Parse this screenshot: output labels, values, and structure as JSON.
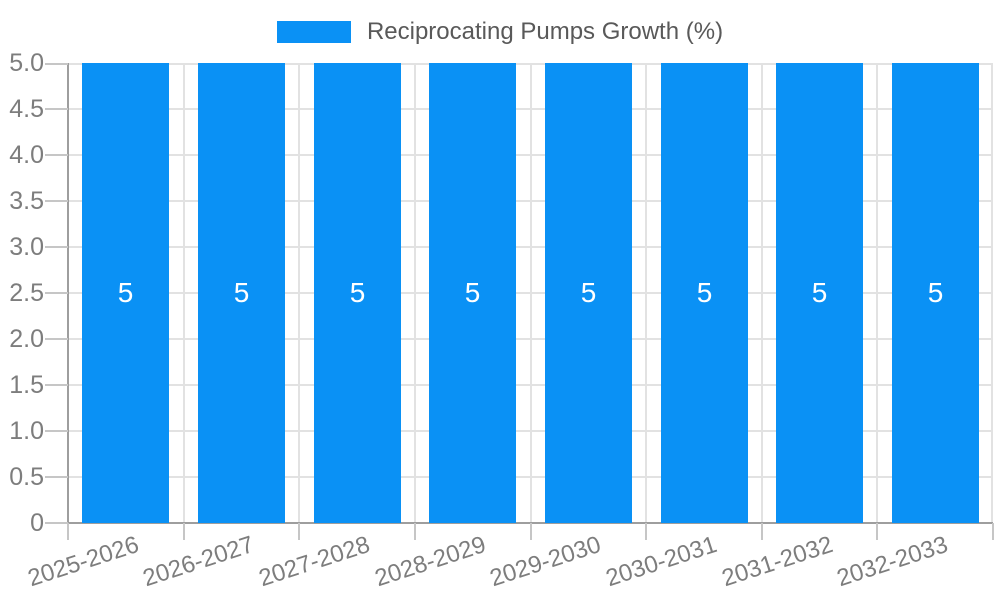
{
  "legend": {
    "items": [
      {
        "label": "Reciprocating Pumps Growth (%)",
        "color": "#0A91F5"
      }
    ],
    "position": "top-center"
  },
  "colors": {
    "bar": "#0A91F5",
    "grid": "#E2E2E2",
    "axis": "#9E9E9E",
    "tick": "#C6C6C6",
    "axis_label_text": "#7D7D7D",
    "legend_text": "#595959",
    "bar_value_text": "#FFFFFF",
    "background": "#FFFFFF"
  },
  "chart_data": {
    "type": "bar",
    "title": "",
    "xlabel": "",
    "ylabel": "",
    "categories": [
      "2025-2026",
      "2026-2027",
      "2027-2028",
      "2028-2029",
      "2029-2030",
      "2030-2031",
      "2031-2032",
      "2032-2033"
    ],
    "series": [
      {
        "name": "Reciprocating Pumps Growth (%)",
        "values": [
          5,
          5,
          5,
          5,
          5,
          5,
          5,
          5
        ]
      }
    ],
    "bar_value_labels": [
      "5",
      "5",
      "5",
      "5",
      "5",
      "5",
      "5",
      "5"
    ],
    "ylim": [
      0,
      5
    ],
    "y_tick_labels": [
      "5.0",
      "4.5",
      "4.0",
      "3.5",
      "3.0",
      "2.5",
      "2.0",
      "1.5",
      "1.0",
      "0.5",
      "0"
    ],
    "y_tick_values": [
      5,
      4.5,
      4,
      3.5,
      3,
      2.5,
      2,
      1.5,
      1,
      0.5,
      0
    ],
    "grid": true,
    "legend_position": "top-center",
    "x_label_rotation_deg": -18,
    "bar_width_fraction": 0.75
  }
}
